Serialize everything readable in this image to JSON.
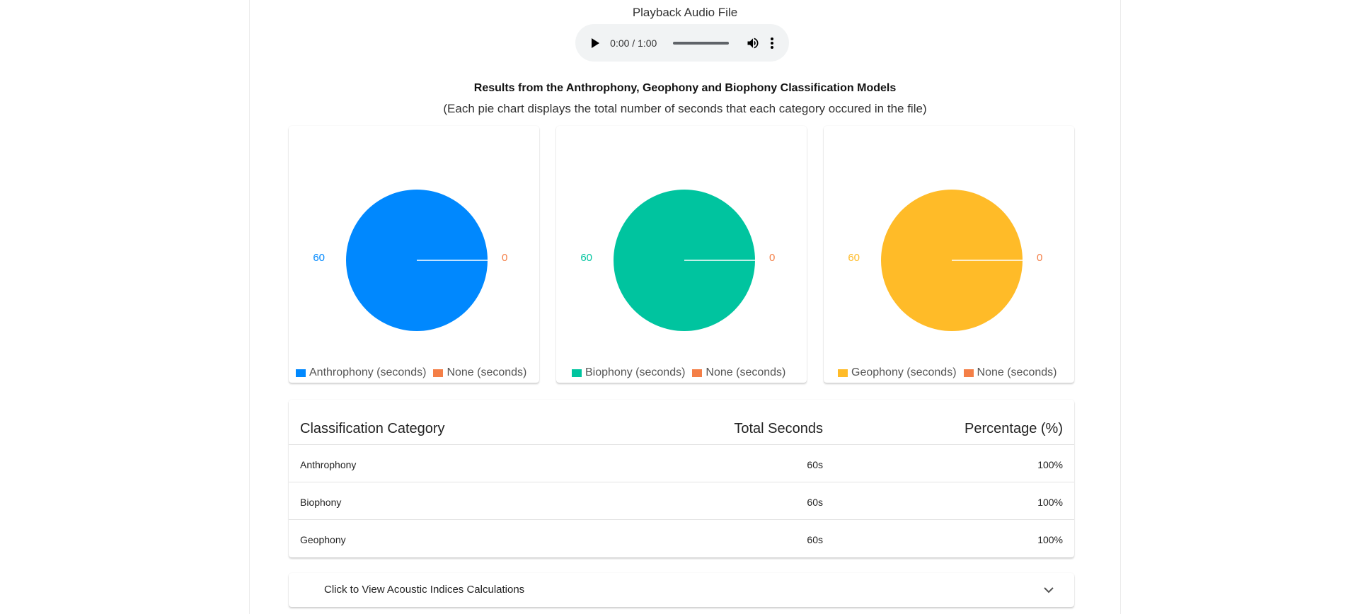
{
  "playback": {
    "label": "Playback Audio File",
    "time": "0:00 / 1:00",
    "icons": {
      "play": "play-icon",
      "volume": "volume-icon",
      "more": "more-vert-icon"
    }
  },
  "results": {
    "title": "Results from the Anthrophony, Geophony and Biophony Classification Models",
    "subtitle": "(Each pie chart displays the total number of seconds that each category occured in the file)"
  },
  "chart_data": [
    {
      "type": "pie",
      "categories": [
        "Anthrophony (seconds)",
        "None (seconds)"
      ],
      "values": [
        60,
        0
      ],
      "data_labels": [
        "60",
        "0"
      ],
      "colors": [
        "#0088fe",
        "#f47f47"
      ],
      "legend": "bottom"
    },
    {
      "type": "pie",
      "categories": [
        "Biophony (seconds)",
        "None (seconds)"
      ],
      "values": [
        60,
        0
      ],
      "data_labels": [
        "60",
        "0"
      ],
      "colors": [
        "#00c49f",
        "#f47f47"
      ],
      "legend": "bottom"
    },
    {
      "type": "pie",
      "categories": [
        "Geophony (seconds)",
        "None (seconds)"
      ],
      "values": [
        60,
        0
      ],
      "data_labels": [
        "60",
        "0"
      ],
      "colors": [
        "#ffbb28",
        "#f47f47"
      ],
      "legend": "bottom"
    }
  ],
  "table": {
    "headers": [
      "Classification Category",
      "Total Seconds",
      "Percentage (%)"
    ],
    "rows": [
      [
        "Anthrophony",
        "60s",
        "100%"
      ],
      [
        "Biophony",
        "60s",
        "100%"
      ],
      [
        "Geophony",
        "60s",
        "100%"
      ]
    ]
  },
  "accordion": {
    "label": "Click to View Acoustic Indices Calculations",
    "icon": "chevron-down-icon"
  }
}
